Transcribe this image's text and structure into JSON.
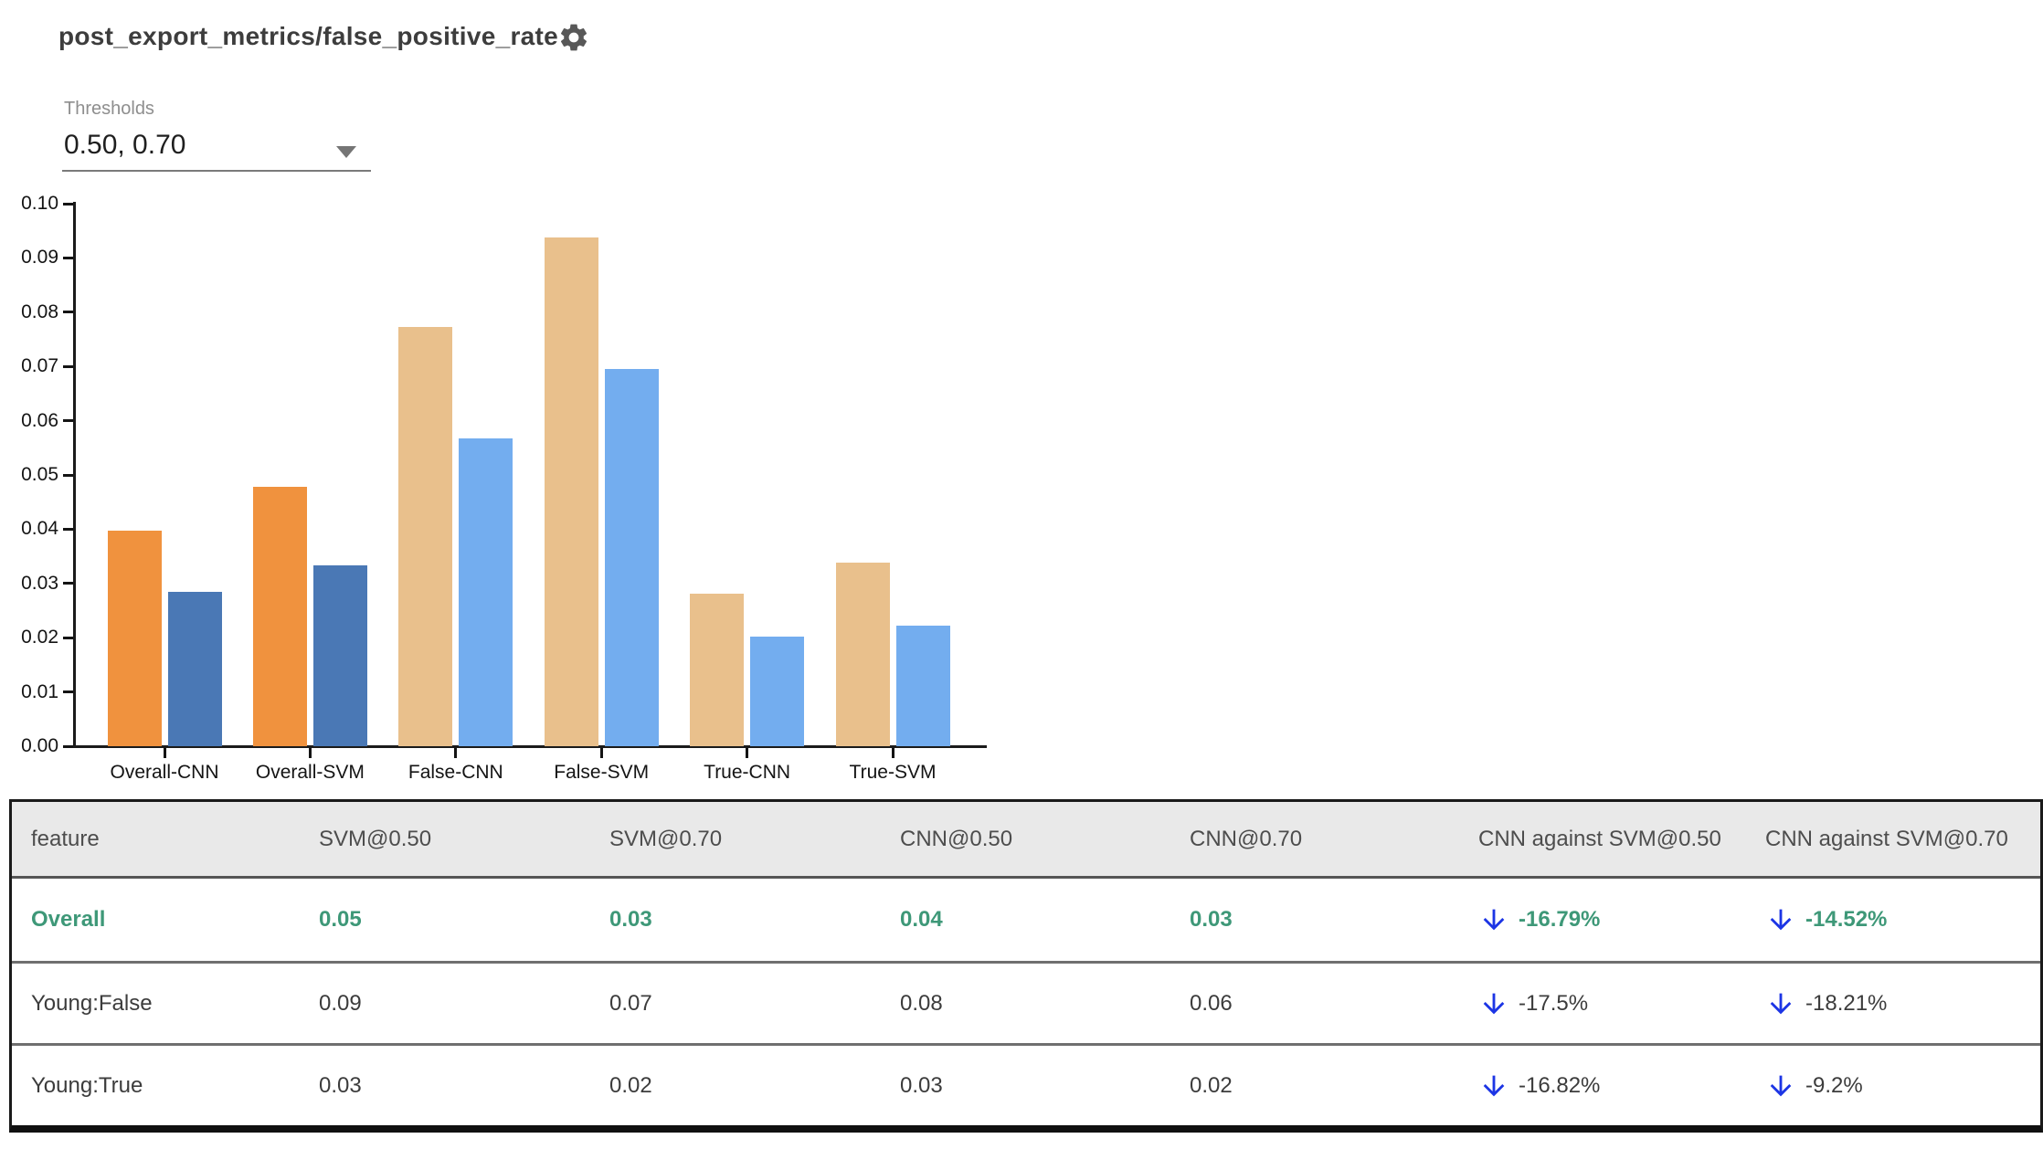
{
  "header": {
    "title": "post_export_metrics/false_positive_rate"
  },
  "thresholds": {
    "label": "Thresholds",
    "value": "0.50, 0.70"
  },
  "chart_data": {
    "type": "bar",
    "title": "post_export_metrics/false_positive_rate",
    "categories": [
      "Overall-CNN",
      "Overall-SVM",
      "False-CNN",
      "False-SVM",
      "True-CNN",
      "True-SVM"
    ],
    "series": [
      {
        "name": "threshold 0.50",
        "values": [
          0.0398,
          0.0478,
          0.0773,
          0.0937,
          0.0281,
          0.0338
        ],
        "colors": [
          "#F0923E",
          "#F0923E",
          "#E9C08C",
          "#E9C08C",
          "#E9C08C",
          "#E9C08C"
        ]
      },
      {
        "name": "threshold 0.70",
        "values": [
          0.0285,
          0.0333,
          0.0568,
          0.0695,
          0.0202,
          0.0222
        ],
        "colors": [
          "#4A78B5",
          "#4A78B5",
          "#73ADEF",
          "#73ADEF",
          "#73ADEF",
          "#73ADEF"
        ]
      }
    ],
    "xlabel": "",
    "ylabel": "",
    "ylim": [
      0,
      0.1
    ],
    "yticks": [
      "0.00",
      "0.01",
      "0.02",
      "0.03",
      "0.04",
      "0.05",
      "0.06",
      "0.07",
      "0.08",
      "0.09",
      "0.10"
    ],
    "grid": false,
    "legend": "none"
  },
  "table": {
    "columns": [
      "feature",
      "SVM@0.50",
      "SVM@0.70",
      "CNN@0.50",
      "CNN@0.70",
      "CNN against SVM@0.50",
      "CNN against SVM@0.70"
    ],
    "rows": [
      {
        "feature": "Overall",
        "values": [
          "0.05",
          "0.03",
          "0.04",
          "0.03"
        ],
        "deltas": [
          {
            "direction": "down",
            "text": "-16.79%"
          },
          {
            "direction": "down",
            "text": "-14.52%"
          }
        ],
        "highlighted": true
      },
      {
        "feature": "Young:False",
        "values": [
          "0.09",
          "0.07",
          "0.08",
          "0.06"
        ],
        "deltas": [
          {
            "direction": "down",
            "text": "-17.5%"
          },
          {
            "direction": "down",
            "text": "-18.21%"
          }
        ],
        "highlighted": false
      },
      {
        "feature": "Young:True",
        "values": [
          "0.03",
          "0.02",
          "0.03",
          "0.02"
        ],
        "deltas": [
          {
            "direction": "down",
            "text": "-16.82%"
          },
          {
            "direction": "down",
            "text": "-9.2%"
          }
        ],
        "highlighted": false
      }
    ],
    "colors": {
      "highlight_text": "#3E9878",
      "arrow": "#1C35E5",
      "header_bg": "#E9E9E9"
    }
  }
}
